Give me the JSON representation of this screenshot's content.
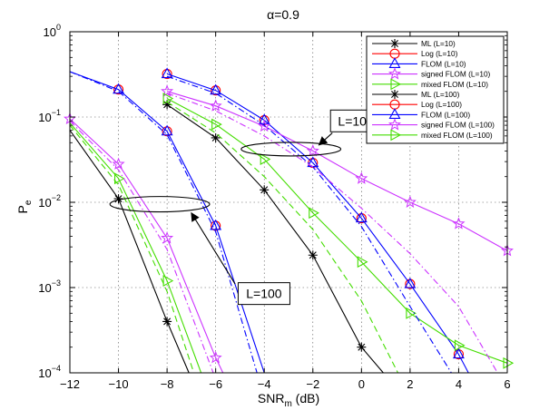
{
  "chart_data": {
    "type": "line",
    "title": "α=0.9",
    "xlabel": "SNR",
    "xlabel_sub": "m",
    "xlabel_unit": " (dB)",
    "ylabel": "P",
    "ylabel_sub": "e",
    "xlim": [
      -12,
      6
    ],
    "ylim_log10": [
      -4,
      0
    ],
    "yscale": "log",
    "xticks": [
      -12,
      -10,
      -8,
      -6,
      -4,
      -2,
      0,
      2,
      4,
      6
    ],
    "xtick_labels": [
      "−12",
      "−10",
      "−8",
      "−6",
      "−4",
      "−2",
      "0",
      "2",
      "4",
      "6"
    ],
    "yticks": [
      {
        "base": "10",
        "exp": "0",
        "value": 1
      },
      {
        "base": "10",
        "exp": "−1",
        "value": 0.1
      },
      {
        "base": "10",
        "exp": "−2",
        "value": 0.01
      },
      {
        "base": "10",
        "exp": "−3",
        "value": 0.001
      },
      {
        "base": "10",
        "exp": "−4",
        "value": 0.0001
      }
    ],
    "legend_position": "top-right",
    "series": [
      {
        "name": "ML (L=10)",
        "color": "#000000",
        "marker": "star",
        "dash": "solid",
        "draw_line": true,
        "x": [
          -8,
          -6,
          -4,
          -2,
          0,
          0.9
        ],
        "y": [
          0.14,
          0.057,
          0.014,
          0.0024,
          0.0002,
          0.0001
        ],
        "marker_x": [
          -8,
          -6,
          -4,
          -2,
          0
        ]
      },
      {
        "name": "Log (L=10)",
        "color": "#ff0000",
        "marker": "circle",
        "dash": "solid",
        "draw_line": false,
        "x": [
          -8,
          -6,
          -4,
          -2,
          0,
          2,
          4
        ],
        "y": [
          0.32,
          0.205,
          0.092,
          0.029,
          0.0065,
          0.0011,
          0.000165
        ],
        "marker_x": [
          -8,
          -6,
          -4,
          -2,
          0,
          2,
          4
        ]
      },
      {
        "name": "FLOM (L=10)",
        "color": "#0000ff",
        "marker": "triangle",
        "dash": "solid",
        "draw_line": true,
        "x": [
          -8,
          -6,
          -4,
          -2,
          0,
          2,
          4,
          4.4
        ],
        "y": [
          0.32,
          0.205,
          0.092,
          0.029,
          0.0065,
          0.0011,
          0.000165,
          0.0001
        ],
        "marker_x": [
          -8,
          -6,
          -4,
          -2,
          0,
          2,
          4
        ]
      },
      {
        "name": "signed FLOM (L=10)",
        "color": "#cc33ff",
        "marker": "star",
        "dash": "solid",
        "draw_line": true,
        "x": [
          -8,
          -6,
          -4,
          -2,
          0,
          2,
          4,
          6
        ],
        "y": [
          0.2,
          0.135,
          0.078,
          0.04,
          0.019,
          0.01,
          0.0056,
          0.0027
        ],
        "marker_x": [
          -8,
          -6,
          -4,
          -2,
          0,
          2,
          4,
          6
        ]
      },
      {
        "name": "mixed FLOM (L=10)",
        "color": "#44dd00",
        "marker": "tri-right",
        "dash": "solid",
        "draw_line": true,
        "x": [
          -8,
          -6,
          -4,
          -2,
          0,
          2,
          4,
          6
        ],
        "y": [
          0.165,
          0.082,
          0.032,
          0.0075,
          0.002,
          0.0005,
          0.00021,
          0.00013
        ],
        "marker_x": [
          -8,
          -6,
          -4,
          -2,
          0,
          2,
          4,
          6
        ]
      },
      {
        "name": "ML (L=100)",
        "color": "#000000",
        "marker": "star",
        "dash": "solid",
        "draw_line": true,
        "x": [
          -12,
          -10,
          -8,
          -7.1
        ],
        "y": [
          0.07,
          0.011,
          0.0004,
          0.0001
        ],
        "marker_x": [
          -10,
          -8
        ]
      },
      {
        "name": "Log (L=100)",
        "color": "#ff0000",
        "marker": "circle",
        "dash": "solid",
        "draw_line": false,
        "x": [
          -12,
          -10,
          -8,
          -6,
          -4
        ],
        "y": [
          0.34,
          0.21,
          0.068,
          0.0053,
          0.0001
        ],
        "marker_x": [
          -10,
          -8,
          -6
        ]
      },
      {
        "name": "FLOM (L=100)",
        "color": "#0000ff",
        "marker": "triangle",
        "dash": "solid",
        "draw_line": true,
        "x": [
          -12,
          -10,
          -8,
          -6,
          -4
        ],
        "y": [
          0.34,
          0.21,
          0.068,
          0.0053,
          0.0001
        ],
        "marker_x": [
          -10,
          -8,
          -6
        ]
      },
      {
        "name": "signed FLOM (L=100)",
        "color": "#cc33ff",
        "marker": "star",
        "dash": "solid",
        "draw_line": true,
        "x": [
          -12,
          -10,
          -8,
          -6,
          -5.7
        ],
        "y": [
          0.095,
          0.028,
          0.0038,
          0.00015,
          0.0001
        ],
        "marker_x": [
          -12,
          -10,
          -8,
          -6
        ]
      },
      {
        "name": "mixed FLOM (L=100)",
        "color": "#44dd00",
        "marker": "tri-right",
        "dash": "solid",
        "draw_line": true,
        "x": [
          -12,
          -10,
          -8,
          -6.6
        ],
        "y": [
          0.085,
          0.019,
          0.0012,
          0.0001
        ],
        "marker_x": [
          -10,
          -8
        ]
      },
      {
        "name": "",
        "color": "#0000ff",
        "marker": "none",
        "dash": "dashdot",
        "draw_line": true,
        "in_legend": false,
        "x": [
          -8,
          -6,
          -4,
          -2,
          0,
          2,
          3.7
        ],
        "y": [
          0.3,
          0.19,
          0.08,
          0.026,
          0.0052,
          0.0006,
          0.0001
        ],
        "marker_x": []
      },
      {
        "name": "",
        "color": "#cc33ff",
        "marker": "none",
        "dash": "dashdot",
        "draw_line": true,
        "in_legend": false,
        "x": [
          -8,
          -6,
          -4,
          -2,
          0,
          2,
          4,
          5.6
        ],
        "y": [
          0.19,
          0.118,
          0.06,
          0.026,
          0.0085,
          0.0025,
          0.0006,
          0.0001
        ],
        "marker_x": []
      },
      {
        "name": "",
        "color": "#44dd00",
        "marker": "none",
        "dash": "dashed",
        "draw_line": true,
        "in_legend": false,
        "x": [
          -8,
          -6,
          -4,
          -2,
          0,
          1.5
        ],
        "y": [
          0.15,
          0.065,
          0.02,
          0.0048,
          0.0007,
          0.0001
        ],
        "marker_x": []
      },
      {
        "name": "",
        "color": "#0000ff",
        "marker": "none",
        "dash": "dashdot",
        "draw_line": true,
        "in_legend": false,
        "x": [
          -12,
          -10,
          -8,
          -6,
          -4.3
        ],
        "y": [
          0.34,
          0.2,
          0.062,
          0.0045,
          0.0001
        ],
        "marker_x": []
      },
      {
        "name": "",
        "color": "#cc33ff",
        "marker": "none",
        "dash": "dashdot",
        "draw_line": true,
        "in_legend": false,
        "x": [
          -12,
          -10,
          -8,
          -6.1
        ],
        "y": [
          0.09,
          0.024,
          0.0028,
          0.0001
        ],
        "marker_x": []
      },
      {
        "name": "",
        "color": "#44dd00",
        "marker": "none",
        "dash": "dashed",
        "draw_line": true,
        "in_legend": false,
        "x": [
          -12,
          -10,
          -8,
          -6.9
        ],
        "y": [
          0.08,
          0.016,
          0.0009,
          0.0001
        ],
        "marker_x": []
      }
    ],
    "annotations": [
      {
        "label": "L=10",
        "ellipse_center": [
          -2.9,
          0.042
        ],
        "ellipse_rx_data": 2.05,
        "ellipse_ry_decades": 0.08,
        "arrow_from": [
          -1.2,
          0.065
        ],
        "arrow_to": [
          -1.75,
          0.047
        ],
        "box_anchor": [
          -1.2,
          0.09
        ]
      },
      {
        "label": "L=100",
        "ellipse_center": [
          -8.3,
          0.0095
        ],
        "ellipse_rx_data": 2.05,
        "ellipse_ry_decades": 0.09,
        "arrow_from": [
          -5.2,
          0.0011
        ],
        "arrow_to": [
          -7.0,
          0.0075
        ],
        "box_anchor": [
          -5.0,
          0.00085
        ]
      }
    ]
  }
}
